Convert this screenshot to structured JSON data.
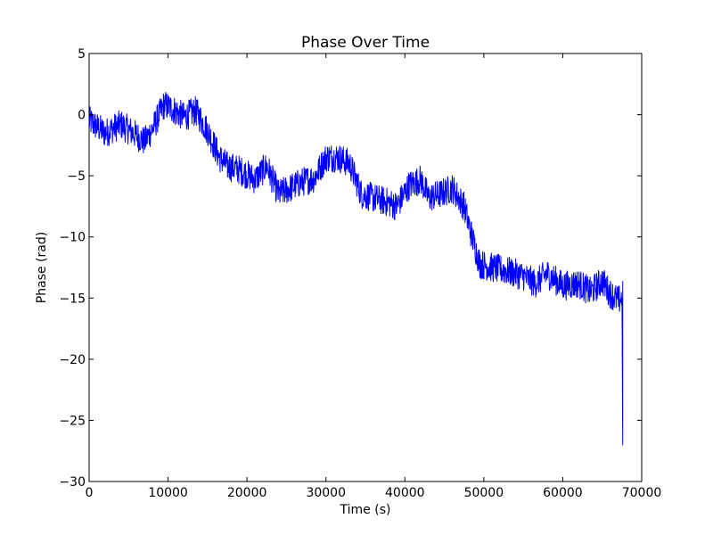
{
  "chart_data": {
    "type": "line",
    "title": "Phase Over Time",
    "xlabel": "Time (s)",
    "ylabel": "Phase (rad)",
    "xlim": [
      0,
      70000
    ],
    "ylim": [
      -30,
      5
    ],
    "xticks": [
      0,
      10000,
      20000,
      30000,
      40000,
      50000,
      60000,
      70000
    ],
    "xtick_labels": [
      "0",
      "10000",
      "20000",
      "30000",
      "40000",
      "50000",
      "60000",
      "70000"
    ],
    "yticks": [
      5,
      0,
      -5,
      -10,
      -15,
      -20,
      -25,
      -30
    ],
    "ytick_labels": [
      "5",
      "0",
      "−5",
      "−10",
      "−15",
      "−20",
      "−25",
      "−30"
    ],
    "grid": false,
    "series": [
      {
        "color": "#0000ff",
        "x": [
          0,
          2000,
          4000,
          6000,
          7000,
          8000,
          9500,
          10500,
          12000,
          13500,
          15000,
          16500,
          17500,
          19000,
          21000,
          22500,
          24000,
          25500,
          27000,
          28500,
          30000,
          31500,
          33000,
          34500,
          36000,
          38000,
          39000,
          40500,
          42000,
          43000,
          44500,
          46000,
          47500,
          48500,
          49500,
          51000,
          53000,
          55000,
          56500,
          58000,
          60000,
          62000,
          63500,
          65000,
          66000,
          67000,
          67500,
          67600
        ],
        "y": [
          -0.5,
          -1.5,
          -0.8,
          -1.7,
          -2.2,
          -1.2,
          0.8,
          0.5,
          -0.2,
          0.3,
          -1.3,
          -3.5,
          -4.2,
          -4.5,
          -5.3,
          -4.2,
          -6.5,
          -6.0,
          -5.5,
          -5.2,
          -3.5,
          -3.5,
          -4.0,
          -6.5,
          -6.8,
          -7.2,
          -7.5,
          -5.8,
          -5.3,
          -6.8,
          -6.5,
          -6.0,
          -7.5,
          -10.0,
          -12.2,
          -12.5,
          -12.8,
          -13.2,
          -13.8,
          -13.0,
          -14.0,
          -13.8,
          -14.5,
          -13.6,
          -14.6,
          -15.2,
          -15.0,
          -27.0
        ],
        "noise": 0.55
      }
    ]
  }
}
